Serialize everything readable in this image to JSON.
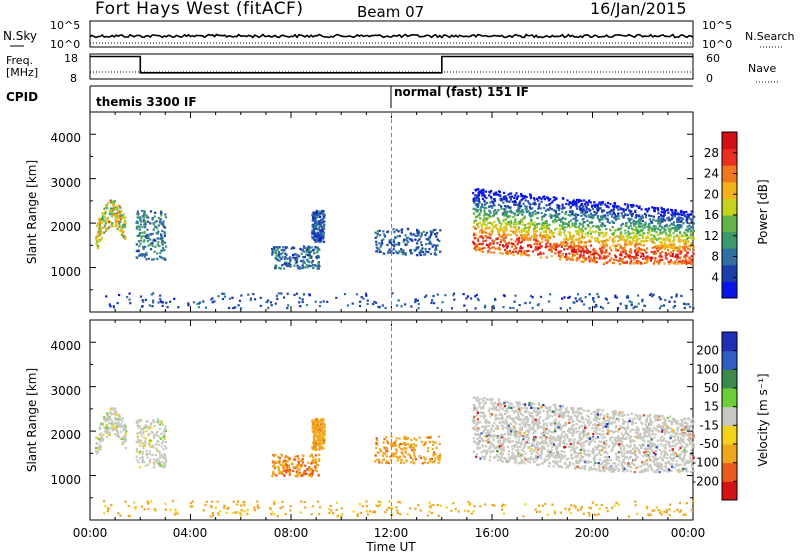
{
  "header": {
    "station": "Fort Hays West (fitACF)",
    "beam": "Beam 07",
    "date": "16/Jan/2015"
  },
  "noise_panel": {
    "left_label": "N.Sky",
    "right_label": "N.Search",
    "left_ticks": [
      "10^5",
      "10^0"
    ],
    "right_ticks": [
      "10^5",
      "10^0"
    ]
  },
  "freq_panel": {
    "left_label_line1": "Freq.",
    "left_label_line2": "[MHz]",
    "right_label": "Nave",
    "left_ticks": [
      "18",
      "8"
    ],
    "right_ticks": [
      "60",
      "0"
    ],
    "freq_steps": [
      {
        "t_start": 0.0,
        "t_end": 2.0,
        "freq": 17.0
      },
      {
        "t_start": 2.0,
        "t_end": 14.0,
        "freq": 10.5
      },
      {
        "t_start": 14.0,
        "t_end": 24.0,
        "freq": 17.0
      }
    ]
  },
  "cpid": {
    "label": "CPID",
    "programs": [
      {
        "name": "themis 3300 IF",
        "t_start": 0.0
      },
      {
        "name": "normal (fast) 151 IF",
        "t_start": 12.0
      }
    ]
  },
  "x_axis": {
    "label": "Time UT",
    "ticks": [
      "00:00",
      "04:00",
      "08:00",
      "12:00",
      "16:00",
      "20:00",
      "00:00"
    ],
    "range_hours": [
      0,
      24
    ]
  },
  "power_panel": {
    "ylabel": "Slant Range [km]",
    "yticks": [
      "1000",
      "2000",
      "3000",
      "4000"
    ],
    "colorbar_label": "Power [dB]",
    "colorbar_ticks": [
      "4",
      "8",
      "12",
      "16",
      "20",
      "24",
      "28"
    ]
  },
  "velocity_panel": {
    "ylabel": "Slant Range [km]",
    "yticks": [
      "1000",
      "2000",
      "3000",
      "4000"
    ],
    "colorbar_label": "Velocity [m s⁻¹]",
    "colorbar_ticks": [
      "200",
      "100",
      "50",
      "15",
      "-15",
      "-50",
      "-100",
      "-200"
    ]
  },
  "chart_data": {
    "type": "heatmap",
    "title": "Fort Hays West (fitACF)",
    "xlabel": "Time UT",
    "ylabel": "Slant Range [km]",
    "xlim_hours": [
      0,
      24
    ],
    "ylim_km": [
      0,
      4500
    ],
    "power_scale_db": [
      0,
      32
    ],
    "velocity_scale_ms": [
      -250,
      250
    ],
    "power_colors": [
      "#0a14e6",
      "#1c3ea8",
      "#2f6fa1",
      "#3c9a6d",
      "#63b545",
      "#c8d21e",
      "#f3b11a",
      "#f0781c",
      "#e9301f",
      "#d10f14"
    ],
    "velocity_colors": {
      "pos_high": "#1e2fb8",
      "pos_mid": "#2c5fbf",
      "pos_low": "#3b8a4a",
      "small_pos": "#6ccf3a",
      "ground": "#c8c8c0",
      "small_neg": "#f5d21a",
      "neg_mid": "#f0a61c",
      "neg_high": "#ea5a1f",
      "neg_max": "#d41414"
    },
    "features": [
      {
        "panel": "both",
        "kind": "curved_echo_band",
        "t_start": 0.2,
        "t_end": 1.4,
        "range_start_km": 1700,
        "range_end_km": 2300,
        "peak_power_db": 24,
        "velocity_ms": 0
      },
      {
        "panel": "both",
        "kind": "patch",
        "t_start": 1.8,
        "t_end": 3.0,
        "range_min_km": 1200,
        "range_max_km": 2300,
        "peak_power_db": 12,
        "velocity_ms": 0
      },
      {
        "panel": "both",
        "kind": "patch",
        "t_start": 7.2,
        "t_end": 9.1,
        "range_min_km": 1000,
        "range_max_km": 1500,
        "peak_power_db": 10,
        "velocity_ms": -70
      },
      {
        "panel": "both",
        "kind": "patch",
        "t_start": 8.8,
        "t_end": 9.3,
        "range_min_km": 1600,
        "range_max_km": 2300,
        "peak_power_db": 8,
        "velocity_ms": -60
      },
      {
        "panel": "both",
        "kind": "patch",
        "t_start": 11.3,
        "t_end": 13.9,
        "range_min_km": 1300,
        "range_max_km": 1900,
        "peak_power_db": 9,
        "velocity_ms": -60
      },
      {
        "panel": "both",
        "kind": "dense_band",
        "t_start": 15.2,
        "t_end": 24.0,
        "range_min_km": 1100,
        "range_max_km": 2800,
        "peak_power_db": 28,
        "velocity_ms": 0
      },
      {
        "panel": "both",
        "kind": "near_range_scatter",
        "t_start": 0.5,
        "t_end": 24.0,
        "range_min_km": 100,
        "range_max_km": 450,
        "peak_power_db": 8,
        "velocity_ms": -40
      }
    ]
  }
}
